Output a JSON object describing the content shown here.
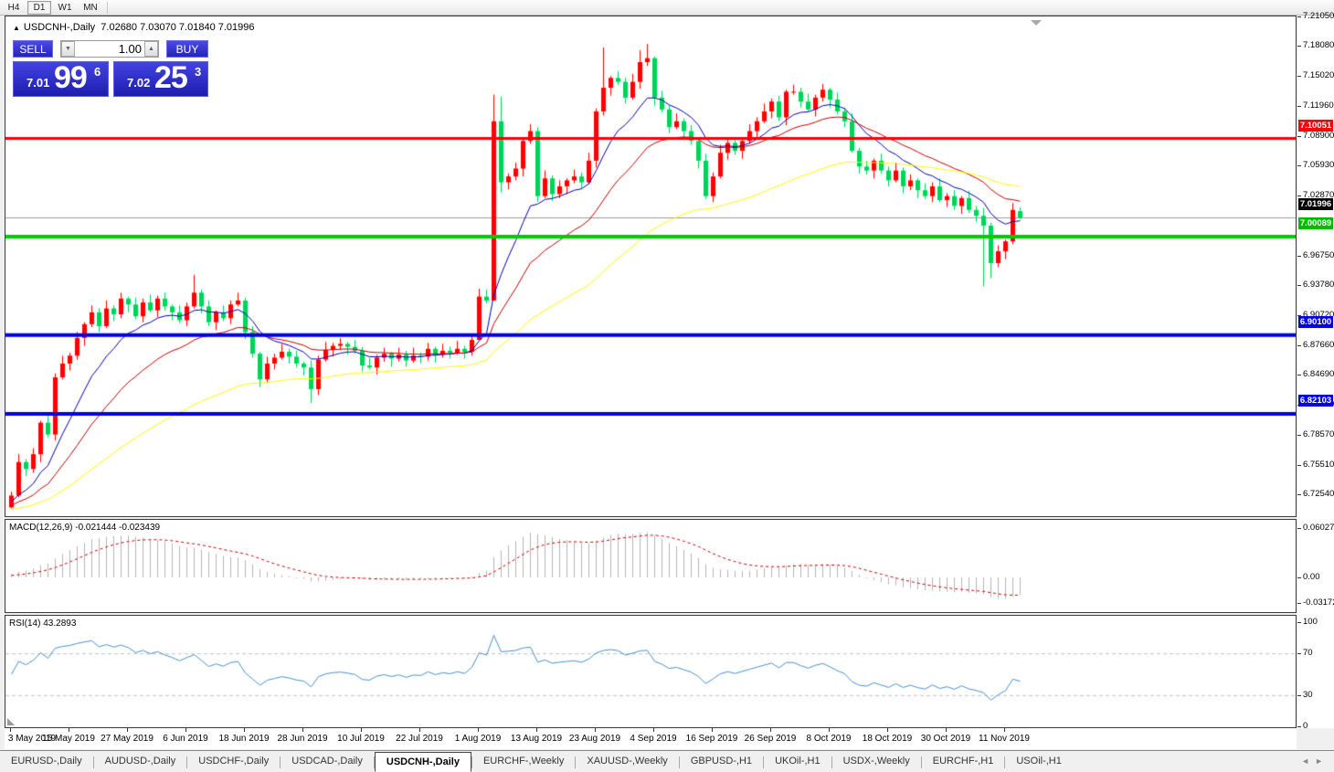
{
  "toolbar": {
    "timeframes": [
      "H4",
      "D1",
      "W1",
      "MN"
    ],
    "active": "D1"
  },
  "title": {
    "arrow": "▲",
    "symbol": "USDCNH-,Daily",
    "ohlc": "7.02680 7.03070 7.01840 7.01996"
  },
  "trade": {
    "sell_label": "SELL",
    "buy_label": "BUY",
    "volume": "1.00",
    "spin_down": "▼",
    "spin_up": "▲",
    "sell_price": {
      "small": "7.01",
      "big": "99",
      "sup": "6"
    },
    "buy_price": {
      "small": "7.02",
      "big": "25",
      "sup": "3"
    }
  },
  "chart_data": {
    "type": "candlestick",
    "symbol": "USDCNH-,Daily",
    "ylim": [
      6.7254,
      7.2105
    ],
    "price_ticks": [
      "7.21050",
      "7.18080",
      "7.15020",
      "7.11960",
      "7.08900",
      "7.05930",
      "7.02870",
      "6.96750",
      "6.93780",
      "6.90720",
      "6.87660",
      "6.84690",
      "6.81650",
      "6.78570",
      "6.75510",
      "6.72540"
    ],
    "date_ticks": [
      "3 May 2019",
      "15 May 2019",
      "27 May 2019",
      "6 Jun 2019",
      "18 Jun 2019",
      "28 Jun 2019",
      "10 Jul 2019",
      "22 Jul 2019",
      "1 Aug 2019",
      "13 Aug 2019",
      "23 Aug 2019",
      "4 Sep 2019",
      "16 Sep 2019",
      "26 Sep 2019",
      "8 Oct 2019",
      "18 Oct 2019",
      "30 Oct 2019",
      "11 Nov 2019"
    ],
    "tick_every": 8,
    "first_open": 6.726,
    "closes": [
      6.738,
      6.772,
      6.765,
      6.78,
      6.812,
      6.8,
      6.858,
      6.872,
      6.88,
      6.898,
      6.912,
      6.924,
      6.91,
      6.928,
      6.922,
      6.938,
      6.932,
      6.92,
      6.934,
      6.926,
      6.938,
      6.93,
      6.924,
      6.916,
      6.93,
      6.944,
      6.93,
      6.914,
      6.924,
      6.918,
      6.932,
      6.936,
      6.904,
      6.882,
      6.856,
      6.872,
      6.878,
      6.884,
      6.879,
      6.872,
      6.868,
      6.846,
      6.876,
      6.886,
      6.89,
      6.892,
      6.889,
      6.885,
      6.87,
      6.868,
      6.878,
      6.882,
      6.877,
      6.881,
      6.875,
      6.88,
      6.879,
      6.887,
      6.881,
      6.885,
      6.883,
      6.887,
      6.884,
      6.896,
      6.94,
      6.936,
      7.118,
      7.056,
      7.062,
      7.07,
      7.098,
      7.108,
      7.042,
      7.06,
      7.044,
      7.052,
      7.058,
      7.062,
      7.056,
      7.078,
      7.128,
      7.152,
      7.162,
      7.158,
      7.142,
      7.158,
      7.178,
      7.182,
      7.142,
      7.13,
      7.112,
      7.118,
      7.108,
      7.098,
      7.078,
      7.042,
      7.062,
      7.086,
      7.096,
      7.088,
      7.098,
      7.108,
      7.118,
      7.128,
      7.138,
      7.122,
      7.148,
      7.148,
      7.138,
      7.13,
      7.142,
      7.15,
      7.14,
      7.128,
      7.118,
      7.088,
      7.072,
      7.068,
      7.078,
      7.068,
      7.058,
      7.068,
      7.052,
      7.058,
      7.048,
      7.042,
      7.052,
      7.038,
      7.042,
      7.032,
      7.04,
      7.028,
      7.022,
      7.012,
      6.974,
      6.986,
      6.996,
      7.028,
      7.02
    ],
    "last_candle": {
      "o": 7.0268,
      "h": 7.0307,
      "l": 7.0184,
      "c": 7.01996
    },
    "wick_overrides": {
      "0": [
        6.742,
        6.725
      ],
      "25": [
        6.962,
        null
      ],
      "41": [
        null,
        6.832
      ],
      "64": [
        6.948,
        6.922
      ],
      "66": [
        7.145,
        6.956
      ],
      "67": [
        7.143,
        7.046
      ],
      "81": [
        7.193,
        null
      ],
      "86": [
        7.19,
        null
      ],
      "87": [
        7.1965,
        null
      ],
      "96": [
        null,
        7.036
      ],
      "133": [
        null,
        6.9505
      ],
      "134": [
        null,
        6.9585
      ]
    },
    "hlines": [
      {
        "value": 7.10051,
        "color": "#fe0000",
        "width": 3,
        "badge": "7.10051",
        "badge_bg": "#fe0000"
      },
      {
        "value": 7.00089,
        "color": "#00cc00",
        "width": 4,
        "badge": "7.00089",
        "badge_bg": "#00bb00"
      },
      {
        "value": 6.901,
        "color": "#0000e6",
        "width": 4,
        "badge": "6.90100",
        "badge_bg": "#0000e6"
      },
      {
        "value": 6.82103,
        "color": "#0000e6",
        "width": 4,
        "badge": "6.82103",
        "badge_bg": "#0000e6"
      }
    ],
    "current_price": {
      "value": 7.01996,
      "badge": "7.01996",
      "line_color": "#9c9c9c",
      "badge_bg": "#000000"
    },
    "ma_lines": [
      {
        "name": "fast-ma",
        "period": 10,
        "color": "#0000b8",
        "seed": 6.73
      },
      {
        "name": "medium-ma",
        "period": 22,
        "color": "#c40000",
        "seed": 6.727
      },
      {
        "name": "slow-ma",
        "period": 55,
        "color": "#ffff00",
        "seed": 6.723
      }
    ],
    "candle_colors": {
      "bull": "#ff0000",
      "bear": "#00d455"
    },
    "macd": {
      "label": "MACD(12,26,9) -0.021444 -0.023439",
      "values": [
        "-0.021444",
        "-0.023439"
      ],
      "axis": [
        "0.060273",
        "0.00",
        "-0.031725"
      ],
      "hist_color": "#b4b4b4",
      "signal_color": "#cc0000"
    },
    "rsi": {
      "label": "RSI(14) 43.2893",
      "value": "43.2893",
      "axis": [
        "100",
        "70",
        "30",
        "0"
      ],
      "levels": [
        70,
        30
      ],
      "color": "#4a90d2",
      "level_color": "#c2c2c2"
    }
  },
  "tabbar": {
    "tabs": [
      "EURUSD-,Daily",
      "AUDUSD-,Daily",
      "USDCHF-,Daily",
      "USDCAD-,Daily",
      "USDCNH-,Daily",
      "EURCHF-,Weekly",
      "XAUUSD-,Weekly",
      "GBPUSD-,H1",
      "UKOil-,H1",
      "USDX-,Weekly",
      "EURCHF-,H1",
      "USOil-,H1"
    ],
    "active": "USDCNH-,Daily",
    "left_arrow": "◄",
    "right_arrow": "►"
  }
}
